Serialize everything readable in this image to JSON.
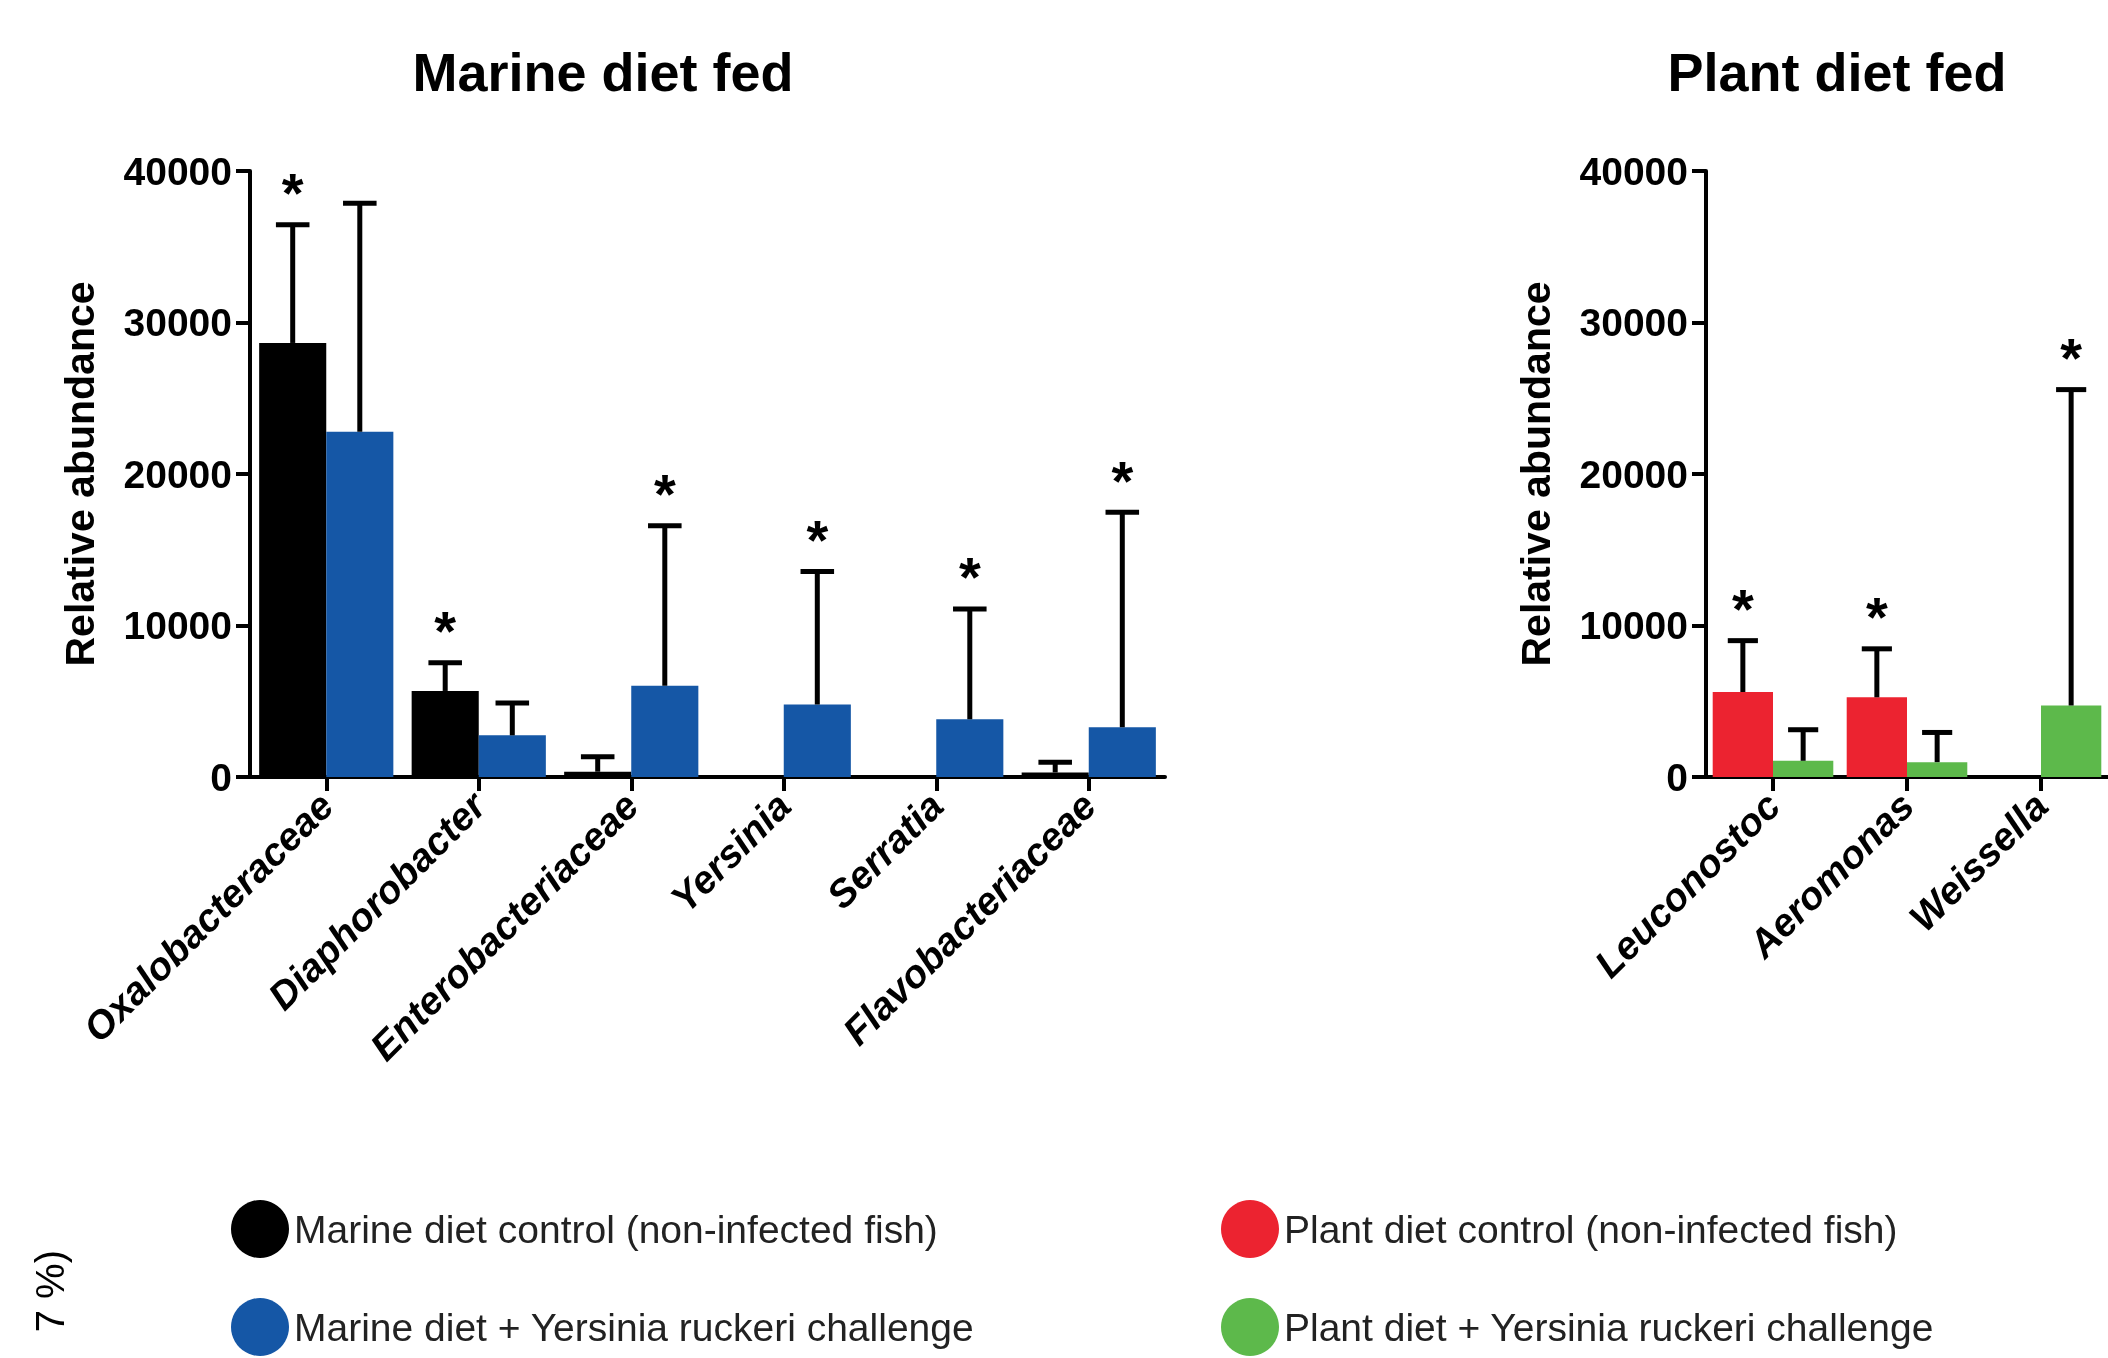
{
  "chart_data": [
    {
      "type": "bar",
      "title": "Marine diet fed",
      "ylabel": "Relative abundance",
      "categories": [
        "Oxalobacteraceae",
        "Diaphorobacter",
        "Enterobacteriaceae",
        "Yersinia",
        "Serratia",
        "Flavobacteriaceae"
      ],
      "series": [
        {
          "name": "Marine diet control (non-infected fish)",
          "color": "#000000",
          "values": [
            28650,
            5680,
            350,
            0,
            0,
            300
          ],
          "errors": [
            [
              28650,
              36450
            ],
            [
              5680,
              7540
            ],
            [
              350,
              1330
            ],
            null,
            null,
            [
              300,
              980
            ]
          ]
        },
        {
          "name": "Marine diet + Yersinia ruckeri challenge",
          "color": "#1557a6",
          "values": [
            22790,
            2750,
            6030,
            4790,
            3810,
            3280
          ],
          "errors": [
            [
              22790,
              37870
            ],
            [
              2750,
              4880
            ],
            [
              6030,
              16590
            ],
            [
              4790,
              13570
            ],
            [
              3810,
              11090
            ],
            [
              3280,
              17470
            ]
          ]
        }
      ],
      "ylim": [
        0,
        40000
      ],
      "yticks": [
        0,
        10000,
        20000,
        30000,
        40000
      ],
      "legend": "bottom",
      "annotations": [
        {
          "text": "*",
          "x": "Oxalobacteraceae",
          "y": 28650
        },
        {
          "text": "*",
          "x": "Diaphorobacter",
          "y": 5680
        },
        {
          "text": "*",
          "x": "Enterobacteriaceae",
          "y": 6030
        },
        {
          "text": "*",
          "x": "Yersinia",
          "y": 4790
        },
        {
          "text": "*",
          "x": "Serratia",
          "y": 3810
        },
        "*",
        "7 %)"
      ]
    },
    {
      "type": "bar",
      "title": "Plant diet fed",
      "ylabel": "Relative abundance",
      "categories": [
        "Leuconostoc",
        "Aeromonas",
        "Weissella"
      ],
      "series": [
        {
          "name": "Plant diet control (non-infected fish)",
          "color": "#ec2330",
          "values": [
            5610,
            5260,
            0
          ],
          "errors": [
            [
              5610,
              9000
            ],
            [
              5260,
              8460
            ],
            null
          ]
        },
        {
          "name": "Plant diet + Yersinia ruckeri challenge",
          "color": "#5db94b",
          "values": [
            1070,
            980,
            4720
          ],
          "errors": [
            [
              1070,
              3120
            ],
            [
              980,
              2940
            ],
            [
              4720,
              25570
            ]
          ]
        }
      ],
      "ylim": [
        0,
        40000
      ],
      "yticks": [
        0,
        10000,
        20000,
        30000,
        40000
      ],
      "legend": "bottom",
      "annotations": [
        {
          "text": "*",
          "x": "Leuconostoc",
          "y": 5610
        },
        {
          "text": "*",
          "x": "Aeromonas",
          "y": 5260
        },
        "*"
      ]
    }
  ]
}
